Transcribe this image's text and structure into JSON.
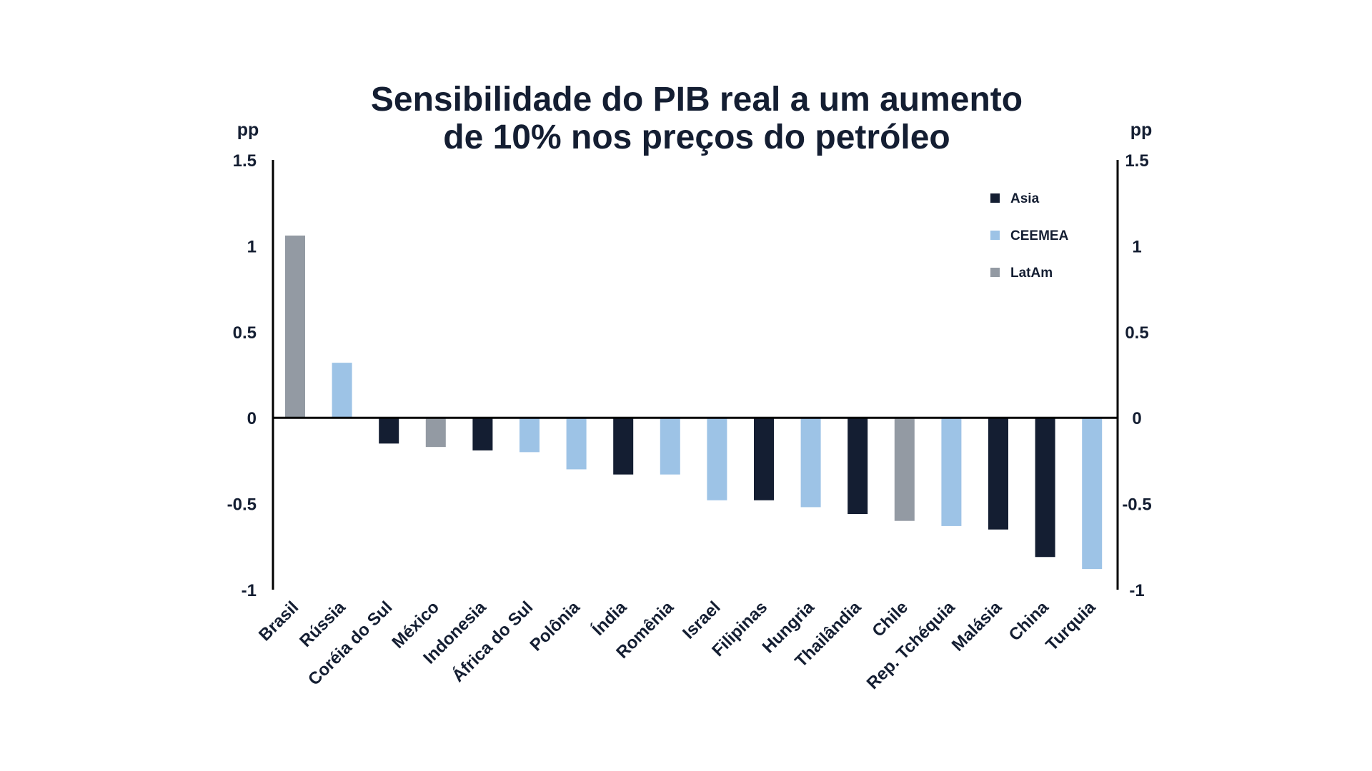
{
  "chart_data": {
    "type": "bar",
    "title_lines": [
      "Sensibilidade do PIB real a um aumento",
      "de 10% nos preços do petróleo"
    ],
    "ylabel_left": "pp",
    "ylabel_right": "pp",
    "ylim": [
      -1,
      1.5
    ],
    "yticks": [
      {
        "value": 1.5,
        "label": "1.5"
      },
      {
        "value": 1,
        "label": "1"
      },
      {
        "value": 0.5,
        "label": "0.5"
      },
      {
        "value": 0,
        "label": "0"
      },
      {
        "value": -0.5,
        "label": "-0.5"
      },
      {
        "value": -1,
        "label": "-1"
      }
    ],
    "legend": [
      {
        "name": "Asia",
        "color": "#141e32"
      },
      {
        "name": "CEEMEA",
        "color": "#9dc3e6"
      },
      {
        "name": "LatAm",
        "color": "#939aa3"
      }
    ],
    "legend_position": "top-right",
    "categories": [
      "Brasil",
      "Rússia",
      "Coréia do Sul",
      "México",
      "Indonesia",
      "África do Sul",
      "Polônia",
      "Índia",
      "Romênia",
      "Israel",
      "Filipinas",
      "Hungria",
      "Thailândia",
      "Chile",
      "Rep. Tchéquia",
      "Malásia",
      "China",
      "Turquia"
    ],
    "values": [
      1.06,
      0.32,
      -0.15,
      -0.17,
      -0.19,
      -0.2,
      -0.3,
      -0.33,
      -0.33,
      -0.48,
      -0.48,
      -0.52,
      -0.56,
      -0.6,
      -0.63,
      -0.65,
      -0.81,
      -0.88
    ],
    "groups": [
      "LatAm",
      "CEEMEA",
      "Asia",
      "LatAm",
      "Asia",
      "CEEMEA",
      "CEEMEA",
      "Asia",
      "CEEMEA",
      "CEEMEA",
      "Asia",
      "CEEMEA",
      "Asia",
      "LatAm",
      "CEEMEA",
      "Asia",
      "Asia",
      "CEEMEA"
    ]
  }
}
